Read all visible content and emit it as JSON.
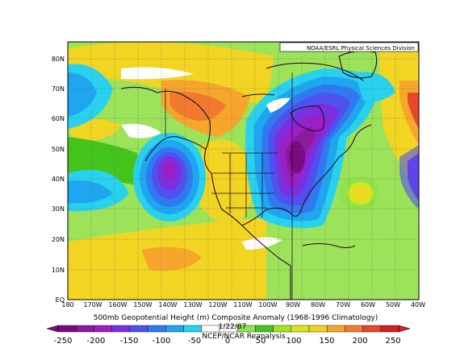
{
  "map": {
    "credit": "NOAA/ESRL Physical Sciences Division",
    "title": "500mb Geopotential Height (m) Composite Anomaly (1968-1996 Climatology)",
    "date": "1/22/87",
    "source": "NCEP/NCAR Reanalysis",
    "lat_labels": [
      "EQ",
      "10N",
      "20N",
      "30N",
      "40N",
      "50N",
      "60N",
      "70N",
      "80N"
    ],
    "lon_labels": [
      "180",
      "170W",
      "160W",
      "150W",
      "140W",
      "130W",
      "120W",
      "110W",
      "100W",
      "90W",
      "80W",
      "70W",
      "60W",
      "50W",
      "40W"
    ],
    "colorbar": {
      "labels": [
        "-250",
        "-200",
        "-150",
        "-100",
        "-50",
        "0",
        "50",
        "100",
        "150",
        "200",
        "250"
      ],
      "colors": [
        "#7a0a7f",
        "#8c1a9c",
        "#9b1fc4",
        "#7b2fe0",
        "#4f51ef",
        "#2f79f2",
        "#1ea6f0",
        "#28d2ee",
        "#ffffff",
        "#ffffff",
        "#8ee44d",
        "#45c41c",
        "#a4e31b",
        "#d8e41d",
        "#f0d21e",
        "#f6a62b",
        "#f27a2f",
        "#e8462d",
        "#d41f28"
      ]
    },
    "anomaly_features": [
      {
        "label": "negative",
        "level": -250,
        "location": "central North America"
      },
      {
        "label": "negative",
        "level": -200,
        "location": "northeast Pacific 40N 140W"
      },
      {
        "label": "positive",
        "level": 150,
        "location": "Alaska / Yukon"
      },
      {
        "label": "positive",
        "level": 100,
        "location": "western USA"
      },
      {
        "label": "positive",
        "level": 150,
        "location": "Greenland east"
      }
    ]
  }
}
